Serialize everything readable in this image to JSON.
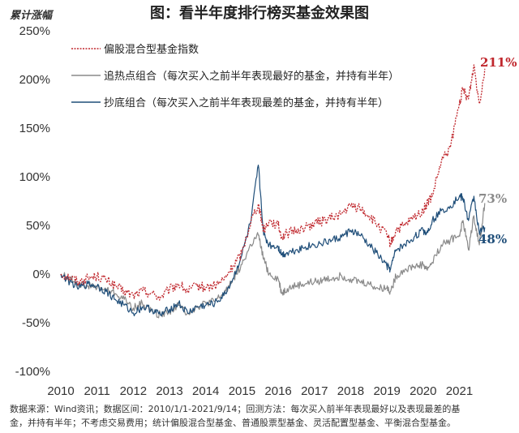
{
  "chart_data": {
    "type": "line",
    "title": "图：看半年度排行榜买基金效果图",
    "ylabel": "累计涨幅",
    "xlabel": "",
    "ylim": [
      -100,
      250
    ],
    "xlim": [
      2010,
      2021.75
    ],
    "y_ticks": [
      "250%",
      "200%",
      "150%",
      "100%",
      "50%",
      "0%",
      "-50%",
      "-100%"
    ],
    "y_tick_values": [
      250,
      200,
      150,
      100,
      50,
      0,
      -50,
      -100
    ],
    "x_ticks": [
      "2010",
      "2011",
      "2012",
      "2013",
      "2014",
      "2015",
      "2016",
      "2017",
      "2018",
      "2019",
      "2020",
      "2021"
    ],
    "x_tick_values": [
      2010,
      2011,
      2012,
      2013,
      2014,
      2015,
      2016,
      2017,
      2018,
      2019,
      2020,
      2021
    ],
    "grid": false,
    "legend_position": "top-left",
    "series": [
      {
        "name": "偏股混合型基金指数",
        "color": "#c0272d",
        "style": "dotted",
        "end_label": "211%",
        "x": [
          2010,
          2010.25,
          2010.5,
          2010.75,
          2011,
          2011.25,
          2011.5,
          2011.75,
          2012,
          2012.25,
          2012.5,
          2012.75,
          2013,
          2013.25,
          2013.5,
          2013.75,
          2014,
          2014.25,
          2014.5,
          2014.75,
          2015,
          2015.25,
          2015.45,
          2015.6,
          2015.75,
          2016,
          2016.1,
          2016.25,
          2016.5,
          2016.75,
          2017,
          2017.25,
          2017.5,
          2017.75,
          2018,
          2018.25,
          2018.5,
          2018.75,
          2019,
          2019.1,
          2019.25,
          2019.5,
          2019.75,
          2020,
          2020.1,
          2020.25,
          2020.5,
          2020.75,
          2021,
          2021.1,
          2021.25,
          2021.4,
          2021.55,
          2021.7
        ],
        "y": [
          0,
          -3,
          -8,
          -4,
          -2,
          -6,
          -12,
          -18,
          -22,
          -17,
          -20,
          -24,
          -16,
          -10,
          -18,
          -12,
          -14,
          -12,
          -6,
          8,
          22,
          55,
          72,
          45,
          55,
          50,
          38,
          42,
          45,
          48,
          52,
          55,
          58,
          62,
          70,
          68,
          60,
          50,
          40,
          30,
          45,
          50,
          58,
          65,
          72,
          80,
          115,
          130,
          175,
          190,
          180,
          215,
          175,
          211
        ]
      },
      {
        "name": "追热点组合（每次买入之前半年表现最好的基金，并持有半年）",
        "color": "#8a8a8a",
        "style": "solid",
        "end_label": "73%",
        "x": [
          2010,
          2010.25,
          2010.5,
          2010.75,
          2011,
          2011.25,
          2011.5,
          2011.75,
          2012,
          2012.25,
          2012.5,
          2012.75,
          2013,
          2013.25,
          2013.5,
          2013.75,
          2014,
          2014.25,
          2014.5,
          2014.75,
          2015,
          2015.25,
          2015.45,
          2015.6,
          2015.75,
          2016,
          2016.1,
          2016.25,
          2016.5,
          2016.75,
          2017,
          2017.25,
          2017.5,
          2017.75,
          2018,
          2018.25,
          2018.5,
          2018.75,
          2019,
          2019.1,
          2019.25,
          2019.5,
          2019.75,
          2020,
          2020.1,
          2020.25,
          2020.5,
          2020.75,
          2021,
          2021.1,
          2021.25,
          2021.4,
          2021.55,
          2021.7
        ],
        "y": [
          0,
          -5,
          -10,
          -12,
          -14,
          -16,
          -20,
          -26,
          -35,
          -30,
          -38,
          -42,
          -38,
          -32,
          -40,
          -34,
          -30,
          -28,
          -20,
          -5,
          10,
          30,
          40,
          15,
          0,
          -5,
          -20,
          -15,
          -12,
          -10,
          -8,
          -6,
          -4,
          -2,
          -5,
          -8,
          -10,
          -15,
          -14,
          -18,
          -2,
          5,
          8,
          10,
          5,
          12,
          30,
          35,
          40,
          55,
          25,
          60,
          30,
          73
        ]
      },
      {
        "name": "抄底组合（每次买入之前半年表现最差的基金，并持有半年）",
        "color": "#1f4e79",
        "style": "solid",
        "end_label": "48%",
        "x": [
          2010,
          2010.25,
          2010.5,
          2010.75,
          2011,
          2011.25,
          2011.5,
          2011.75,
          2012,
          2012.25,
          2012.5,
          2012.75,
          2013,
          2013.25,
          2013.5,
          2013.75,
          2014,
          2014.25,
          2014.5,
          2014.75,
          2015,
          2015.25,
          2015.45,
          2015.6,
          2015.75,
          2016,
          2016.1,
          2016.25,
          2016.5,
          2016.75,
          2017,
          2017.25,
          2017.5,
          2017.75,
          2018,
          2018.25,
          2018.5,
          2018.75,
          2019,
          2019.1,
          2019.25,
          2019.5,
          2019.75,
          2020,
          2020.1,
          2020.25,
          2020.5,
          2020.75,
          2021,
          2021.1,
          2021.25,
          2021.4,
          2021.55,
          2021.7
        ],
        "y": [
          0,
          -8,
          -14,
          -10,
          -12,
          -18,
          -26,
          -32,
          -40,
          -34,
          -36,
          -42,
          -36,
          -30,
          -40,
          -34,
          -32,
          -30,
          -22,
          -5,
          20,
          55,
          112,
          40,
          30,
          28,
          20,
          22,
          25,
          28,
          30,
          32,
          35,
          38,
          45,
          40,
          30,
          20,
          8,
          5,
          25,
          30,
          38,
          45,
          42,
          55,
          65,
          70,
          80,
          78,
          55,
          80,
          42,
          48
        ]
      }
    ]
  },
  "footer": {
    "line1": "数据来源：Wind资讯；数据区间：2010/1/1-2021/9/14；回测方法：每次买入前半年表现最好以及表现最差的基",
    "line2": "金，并持有半年；不考虑交易费用；统计偏股混合型基金、普通股票型基金、灵活配置型基金、平衡混合型基金。"
  }
}
